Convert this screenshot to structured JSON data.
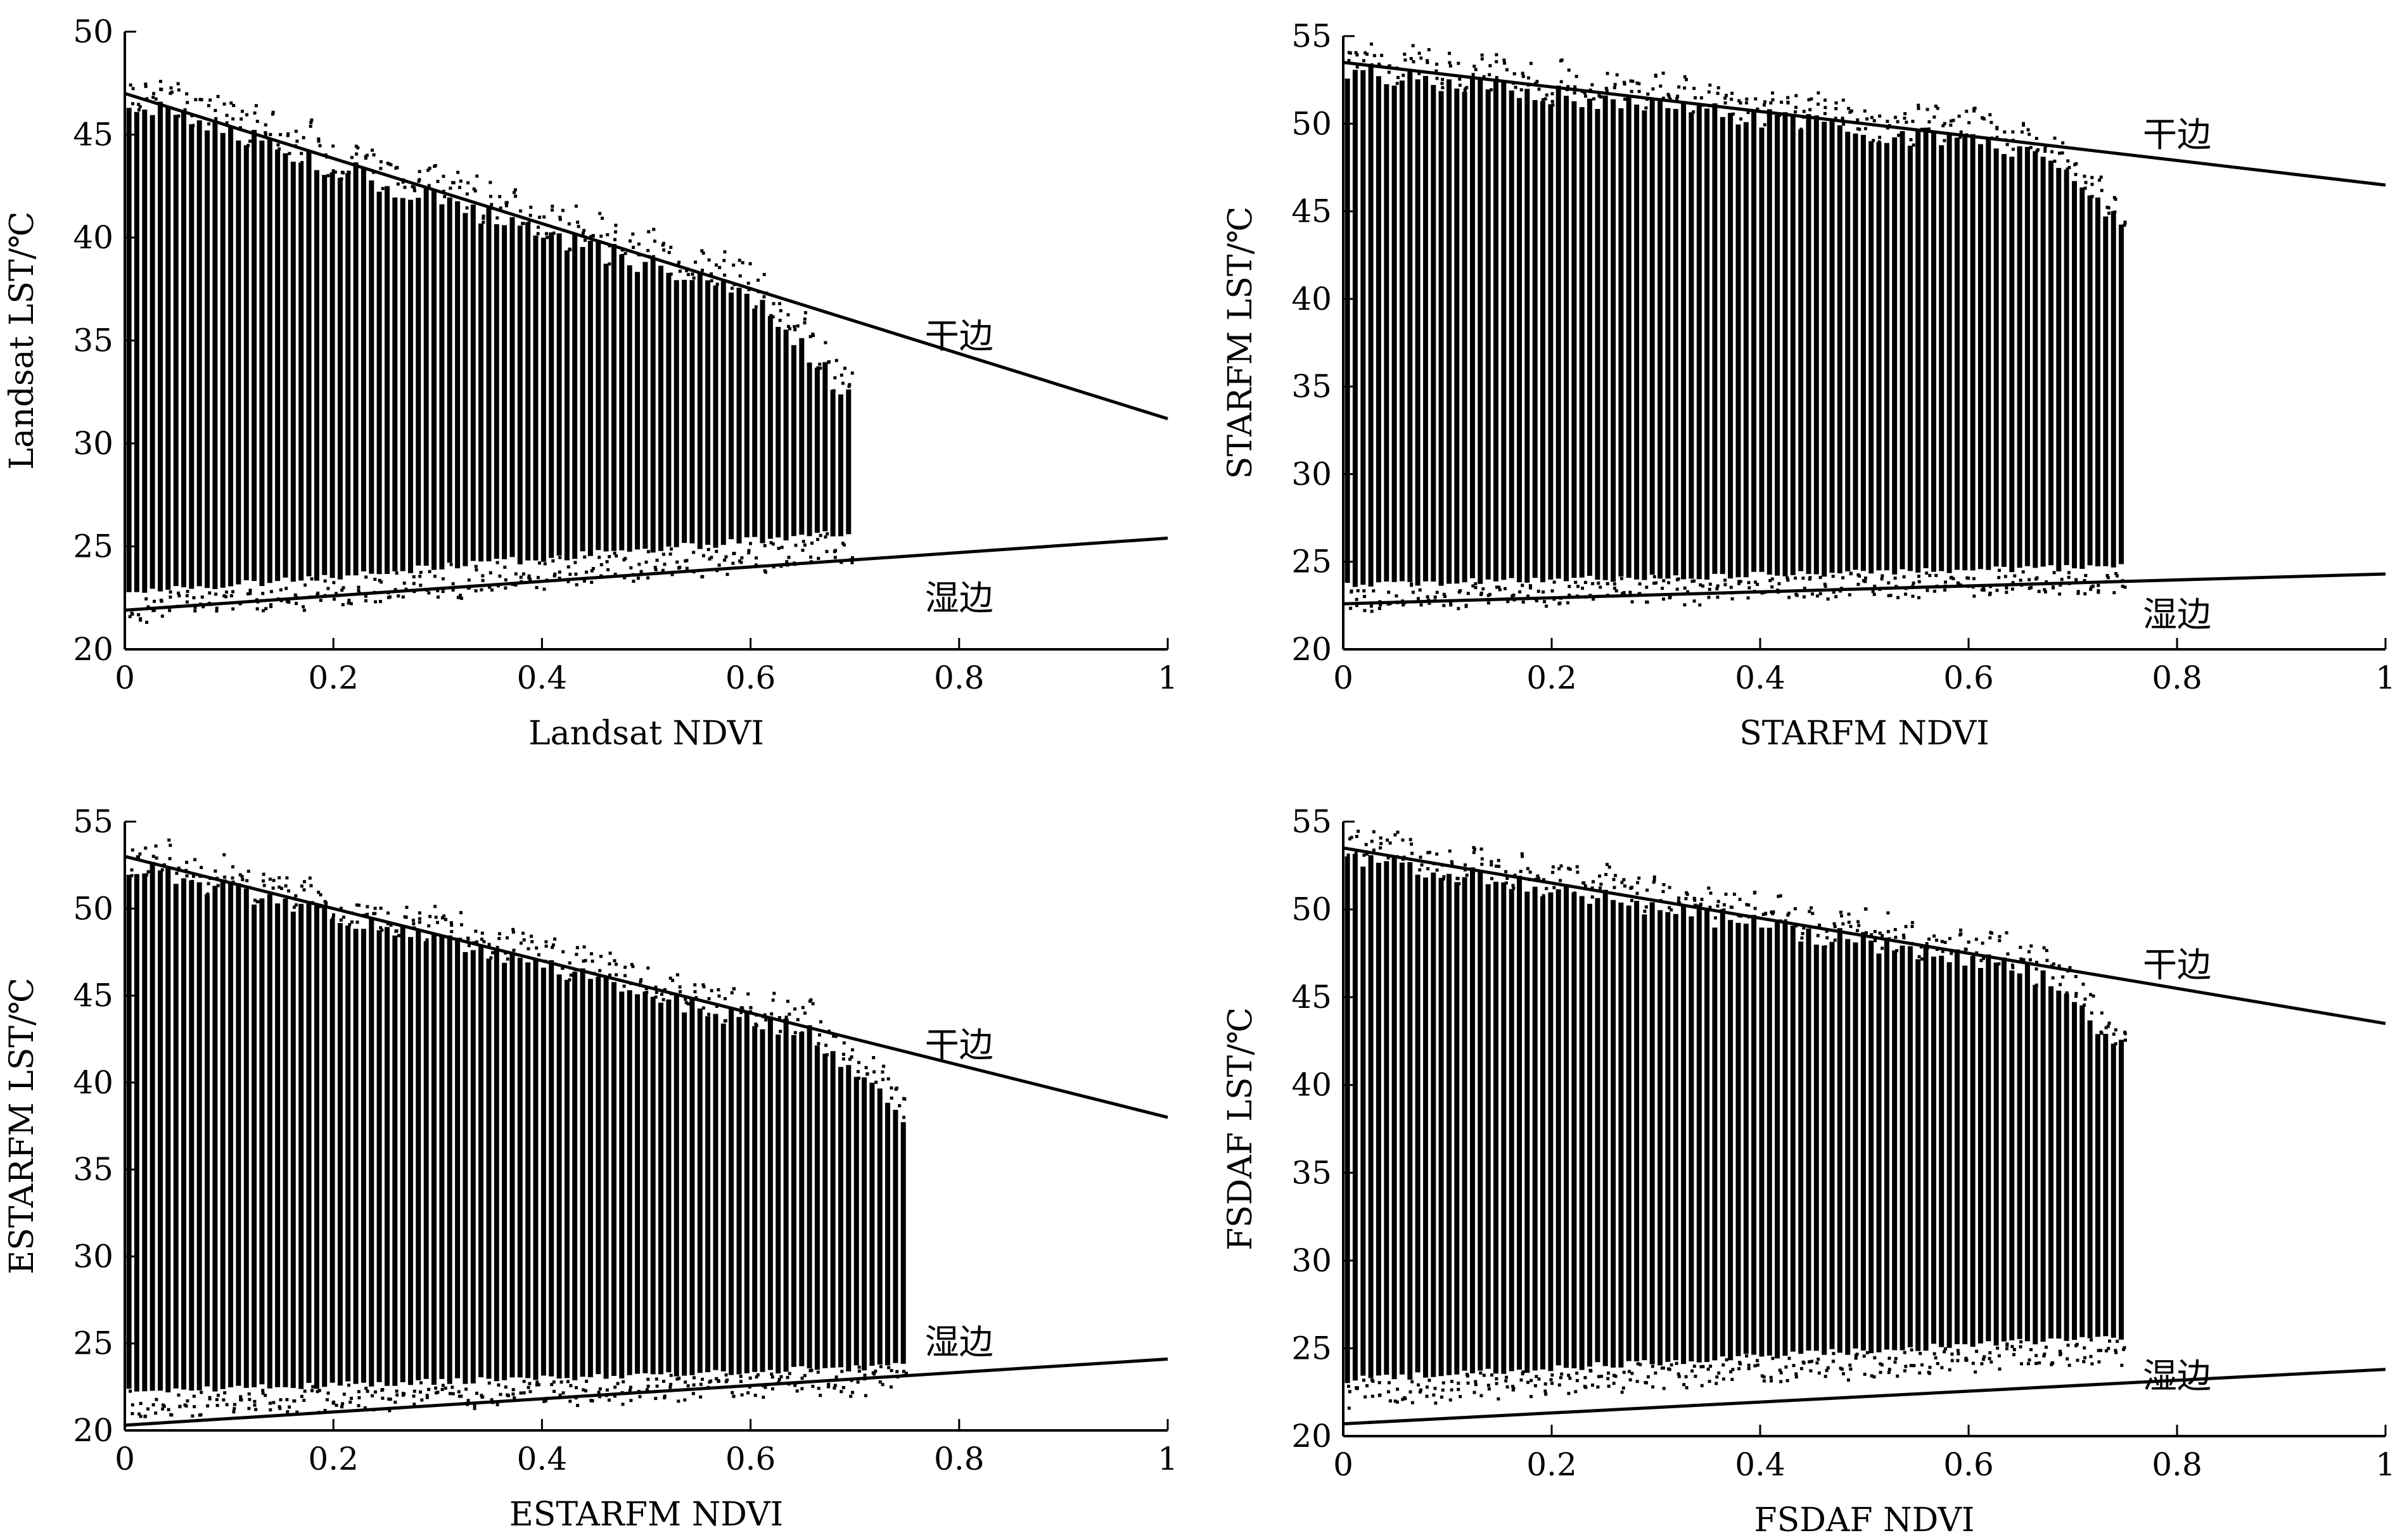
{
  "chart_data": [
    {
      "type": "scatter",
      "xlabel": "Landsat NDVI",
      "ylabel": "Landsat LST/℃",
      "xlim": [
        0,
        1
      ],
      "ylim": [
        20,
        50
      ],
      "xticks": [
        "0",
        "0.2",
        "0.4",
        "0.6",
        "0.8",
        "1"
      ],
      "yticks": [
        "20",
        "25",
        "30",
        "35",
        "40",
        "45",
        "50"
      ],
      "points": {
        "x_range": [
          0.0,
          0.7
        ],
        "lst_min_range": [
          22.5,
          25.5
        ]
      },
      "dry_edge": {
        "label": "干边",
        "x": [
          0,
          1
        ],
        "y": [
          47.0,
          31.2
        ]
      },
      "wet_edge": {
        "label": "湿边",
        "x": [
          0,
          1
        ],
        "y": [
          21.9,
          25.4
        ]
      }
    },
    {
      "type": "scatter",
      "xlabel": "STARFM NDVI",
      "ylabel": "STARFM LST/℃",
      "xlim": [
        0,
        1
      ],
      "ylim": [
        20,
        55
      ],
      "xticks": [
        "0",
        "0.2",
        "0.4",
        "0.6",
        "0.8",
        "1"
      ],
      "yticks": [
        "20",
        "25",
        "30",
        "35",
        "40",
        "45",
        "50",
        "55"
      ],
      "points": {
        "x_range": [
          0.0,
          0.75
        ],
        "lst_min_range": [
          23.5,
          24.5
        ]
      },
      "dry_edge": {
        "label": "干边",
        "x": [
          0,
          1
        ],
        "y": [
          53.5,
          46.5
        ]
      },
      "wet_edge": {
        "label": "湿边",
        "x": [
          0,
          1
        ],
        "y": [
          22.6,
          24.3
        ]
      }
    },
    {
      "type": "scatter",
      "xlabel": "ESTARFM NDVI",
      "ylabel": "ESTARFM LST/℃",
      "xlim": [
        0,
        1
      ],
      "ylim": [
        20,
        55
      ],
      "xticks": [
        "0",
        "0.2",
        "0.4",
        "0.6",
        "0.8",
        "1"
      ],
      "yticks": [
        "20",
        "25",
        "30",
        "35",
        "40",
        "45",
        "50",
        "55"
      ],
      "points": {
        "x_range": [
          0.0,
          0.75
        ],
        "lst_min_range": [
          22.0,
          23.5
        ]
      },
      "dry_edge": {
        "label": "干边",
        "x": [
          0,
          1
        ],
        "y": [
          53.0,
          38.0
        ]
      },
      "wet_edge": {
        "label": "湿边",
        "x": [
          0,
          1
        ],
        "y": [
          20.3,
          24.1
        ]
      }
    },
    {
      "type": "scatter",
      "xlabel": "FSDAF NDVI",
      "ylabel": "FSDAF LST/℃",
      "xlim": [
        0,
        1
      ],
      "ylim": [
        20,
        55
      ],
      "xticks": [
        "0",
        "0.2",
        "0.4",
        "0.6",
        "0.8",
        "1"
      ],
      "yticks": [
        "20",
        "25",
        "30",
        "35",
        "40",
        "45",
        "50",
        "55"
      ],
      "points": {
        "x_range": [
          0.0,
          0.75
        ],
        "lst_min_range": [
          23.0,
          25.5
        ]
      },
      "dry_edge": {
        "label": "干边",
        "x": [
          0,
          1
        ],
        "y": [
          53.5,
          43.5
        ]
      },
      "wet_edge": {
        "label": "湿边",
        "x": [
          0,
          1
        ],
        "y": [
          20.7,
          23.8
        ]
      }
    }
  ]
}
